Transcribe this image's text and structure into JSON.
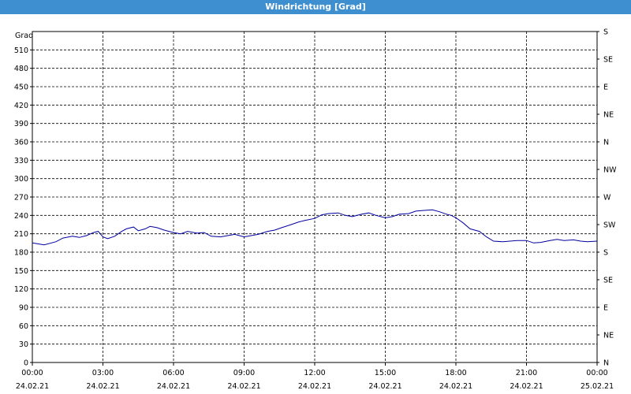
{
  "window": {
    "title": "Windrichtung [Grad]"
  },
  "chart_data": {
    "type": "line",
    "ylabel": "Grad",
    "ylim": [
      0,
      540
    ],
    "y_ticks": [
      0,
      30,
      60,
      90,
      120,
      150,
      180,
      210,
      240,
      270,
      300,
      330,
      360,
      390,
      420,
      450,
      480,
      510
    ],
    "y_right_ticks": [
      {
        "value": 0,
        "label": "N"
      },
      {
        "value": 45,
        "label": "NE"
      },
      {
        "value": 90,
        "label": "E"
      },
      {
        "value": 135,
        "label": "SE"
      },
      {
        "value": 180,
        "label": "S"
      },
      {
        "value": 225,
        "label": "SW"
      },
      {
        "value": 270,
        "label": "W"
      },
      {
        "value": 315,
        "label": "NW"
      },
      {
        "value": 360,
        "label": "N"
      },
      {
        "value": 405,
        "label": "NE"
      },
      {
        "value": 450,
        "label": "E"
      },
      {
        "value": 495,
        "label": "SE"
      },
      {
        "value": 540,
        "label": "S"
      }
    ],
    "xlim": [
      0,
      24
    ],
    "x_ticks": [
      {
        "hour": 0,
        "time": "00:00",
        "date": "24.02.21"
      },
      {
        "hour": 3,
        "time": "03:00",
        "date": "24.02.21"
      },
      {
        "hour": 6,
        "time": "06:00",
        "date": "24.02.21"
      },
      {
        "hour": 9,
        "time": "09:00",
        "date": "24.02.21"
      },
      {
        "hour": 12,
        "time": "12:00",
        "date": "24.02.21"
      },
      {
        "hour": 15,
        "time": "15:00",
        "date": "24.02.21"
      },
      {
        "hour": 18,
        "time": "18:00",
        "date": "24.02.21"
      },
      {
        "hour": 21,
        "time": "21:00",
        "date": "24.02.21"
      },
      {
        "hour": 24,
        "time": "00:00",
        "date": "25.02.21"
      }
    ],
    "grid": true,
    "line_color": "#0000a0",
    "series": [
      {
        "x": [
          0,
          0.5,
          1,
          1.3,
          1.7,
          2,
          2.3,
          2.6,
          2.8,
          3,
          3.2,
          3.5,
          3.8,
          4,
          4.3,
          4.5,
          4.8,
          5,
          5.3,
          5.6,
          6,
          6.3,
          6.6,
          7,
          7.3,
          7.6,
          8,
          8.3,
          8.6,
          9,
          9.3,
          9.6,
          10,
          10.3,
          10.6,
          11,
          11.3,
          11.6,
          12,
          12.3,
          12.6,
          13,
          13.3,
          13.6,
          14,
          14.3,
          14.6,
          15,
          15.3,
          15.6,
          16,
          16.3,
          16.6,
          17,
          17.3,
          17.6,
          17.8,
          18,
          18.3,
          18.6,
          19,
          19.3,
          19.6,
          20,
          20.3,
          20.6,
          21,
          21.3,
          21.6,
          22,
          22.3,
          22.6,
          23,
          23.3,
          23.6,
          24
        ],
        "y": [
          195,
          192,
          197,
          203,
          206,
          204,
          207,
          212,
          214,
          205,
          202,
          206,
          214,
          218,
          221,
          215,
          218,
          222,
          220,
          216,
          212,
          210,
          214,
          211,
          212,
          206,
          205,
          207,
          209,
          205,
          207,
          209,
          214,
          216,
          220,
          225,
          229,
          232,
          235,
          241,
          243,
          244,
          240,
          238,
          242,
          244,
          240,
          236,
          238,
          242,
          243,
          247,
          248,
          249,
          246,
          242,
          240,
          236,
          228,
          218,
          214,
          205,
          198,
          197,
          198,
          199,
          199,
          195,
          196,
          199,
          201,
          199,
          200,
          198,
          197,
          198
        ]
      }
    ]
  }
}
